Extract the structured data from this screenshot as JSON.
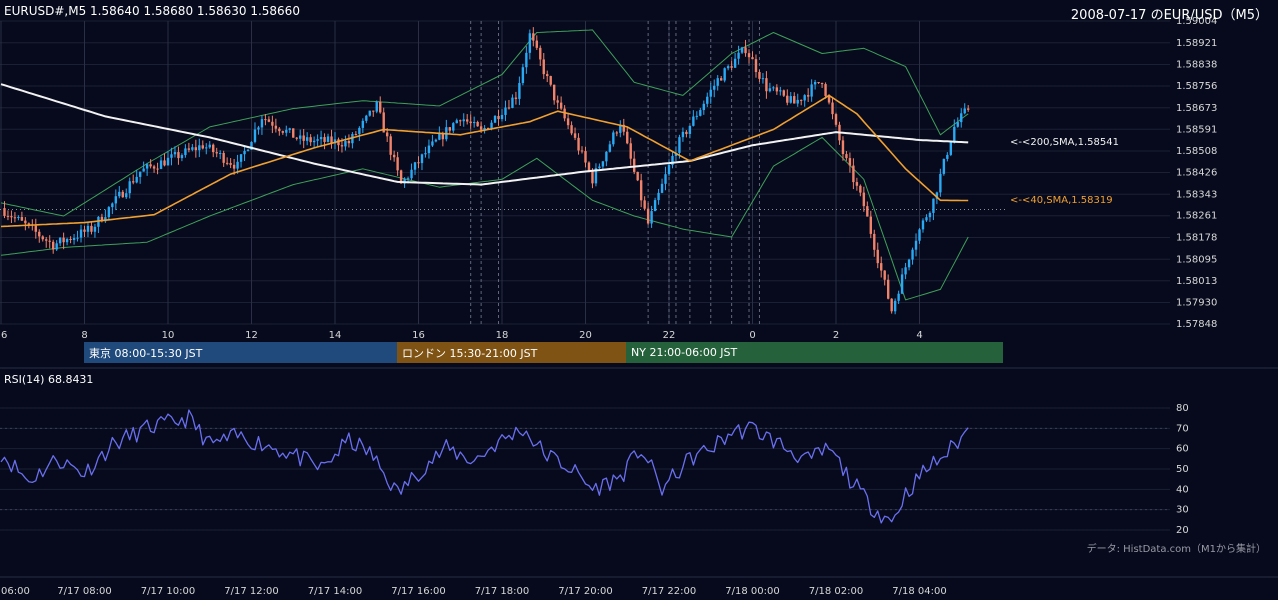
{
  "header": {
    "symbol_info": "EURUSD#,M5 1.58640 1.58680 1.58630 1.58660",
    "title": "2008-07-17 のEUR/USD（M5）"
  },
  "price_panel": {
    "y_ticks": [
      "1.59004",
      "1.58921",
      "1.58838",
      "1.58756",
      "1.58673",
      "1.58591",
      "1.58508",
      "1.58426",
      "1.58343",
      "1.58261",
      "1.58178",
      "1.58095",
      "1.58013",
      "1.57930",
      "1.57848"
    ],
    "x_ticks": [
      "6",
      "8",
      "10",
      "12",
      "14",
      "16",
      "18",
      "20",
      "22",
      "0",
      "2",
      "4"
    ],
    "ma_labels": {
      "sma200": "<-<200,SMA,1.58541",
      "sma40": "<-<40,SMA,1.58319"
    },
    "colors": {
      "background": "#060a1c",
      "candle_up": "#2aa9f5",
      "candle_down": "#f2836b",
      "sma200": "#f2f2f2",
      "sma40": "#f0a030",
      "bollinger": "#3fa05a",
      "reference_line": "#c8c8c8"
    }
  },
  "sessions": [
    {
      "label": "東京 08:00-15:30 JST",
      "color": "#214a7c"
    },
    {
      "label": "ロンドン 15:30-21:00 JST",
      "color": "#7f5314"
    },
    {
      "label": "NY 21:00-06:00 JST",
      "color": "#25613b"
    }
  ],
  "rsi_panel": {
    "title": "RSI(14) 68.8431",
    "y_ticks": [
      "80",
      "70",
      "60",
      "50",
      "40",
      "30",
      "20"
    ],
    "x_ticks": [
      "06:00",
      "7/17 08:00",
      "7/17 10:00",
      "7/17 12:00",
      "7/17 14:00",
      "7/17 16:00",
      "7/17 18:00",
      "7/17 20:00",
      "7/17 22:00",
      "7/18 00:00",
      "7/18 02:00",
      "7/18 04:00"
    ],
    "color": "#6a6ff0"
  },
  "credit": "データ: HistData.com（M1から集計）",
  "chart_data": [
    {
      "type": "candlestick",
      "title": "2008-07-17 のEUR/USD（M5）",
      "ylim": [
        1.57848,
        1.59004
      ],
      "reference_price": 1.58285,
      "anchors": [
        {
          "t": "06:00",
          "price": 1.5829
        },
        {
          "t": "07:15",
          "price": 1.5815
        },
        {
          "t": "08:10",
          "price": 1.5821
        },
        {
          "t": "09:20",
          "price": 1.5843
        },
        {
          "t": "10:50",
          "price": 1.5853
        },
        {
          "t": "11:40",
          "price": 1.5845
        },
        {
          "t": "12:15",
          "price": 1.5864
        },
        {
          "t": "13:10",
          "price": 1.5855
        },
        {
          "t": "14:20",
          "price": 1.5854
        },
        {
          "t": "15:00",
          "price": 1.5868
        },
        {
          "t": "15:35",
          "price": 1.5838
        },
        {
          "t": "16:10",
          "price": 1.585
        },
        {
          "t": "17:00",
          "price": 1.5864
        },
        {
          "t": "17:30",
          "price": 1.5858
        },
        {
          "t": "18:20",
          "price": 1.5872
        },
        {
          "t": "18:40",
          "price": 1.5895
        },
        {
          "t": "19:20",
          "price": 1.5868
        },
        {
          "t": "19:40",
          "price": 1.5858
        },
        {
          "t": "20:10",
          "price": 1.584
        },
        {
          "t": "20:50",
          "price": 1.5862
        },
        {
          "t": "21:30",
          "price": 1.5823
        },
        {
          "t": "22:10",
          "price": 1.5852
        },
        {
          "t": "22:40",
          "price": 1.5865
        },
        {
          "t": "23:10",
          "price": 1.5878
        },
        {
          "t": "23:50",
          "price": 1.589
        },
        {
          "t": "00:20",
          "price": 1.5875
        },
        {
          "t": "01:00",
          "price": 1.5869
        },
        {
          "t": "01:40",
          "price": 1.5878
        },
        {
          "t": "02:10",
          "price": 1.585
        },
        {
          "t": "02:40",
          "price": 1.583
        },
        {
          "t": "03:20",
          "price": 1.579
        },
        {
          "t": "03:50",
          "price": 1.5815
        },
        {
          "t": "04:20",
          "price": 1.5832
        },
        {
          "t": "04:50",
          "price": 1.586
        },
        {
          "t": "05:10",
          "price": 1.5867
        }
      ],
      "sma200": [
        {
          "t": "06:00",
          "price": 1.58763
        },
        {
          "t": "08:30",
          "price": 1.5864
        },
        {
          "t": "11:00",
          "price": 1.5856
        },
        {
          "t": "13:30",
          "price": 1.5846
        },
        {
          "t": "15:30",
          "price": 1.5839
        },
        {
          "t": "17:30",
          "price": 1.5838
        },
        {
          "t": "20:00",
          "price": 1.5843
        },
        {
          "t": "22:30",
          "price": 1.5847
        },
        {
          "t": "00:00",
          "price": 1.5853
        },
        {
          "t": "02:00",
          "price": 1.5858
        },
        {
          "t": "04:00",
          "price": 1.5855
        },
        {
          "t": "05:10",
          "price": 1.58541
        }
      ],
      "sma40": [
        {
          "t": "06:00",
          "price": 1.5822
        },
        {
          "t": "08:00",
          "price": 1.58235
        },
        {
          "t": "09:40",
          "price": 1.58265
        },
        {
          "t": "11:30",
          "price": 1.5842
        },
        {
          "t": "13:30",
          "price": 1.5852
        },
        {
          "t": "15:10",
          "price": 1.5859
        },
        {
          "t": "17:00",
          "price": 1.5857
        },
        {
          "t": "18:40",
          "price": 1.5862
        },
        {
          "t": "19:20",
          "price": 1.5866
        },
        {
          "t": "21:00",
          "price": 1.586
        },
        {
          "t": "22:30",
          "price": 1.5847
        },
        {
          "t": "00:30",
          "price": 1.5859
        },
        {
          "t": "01:50",
          "price": 1.5872
        },
        {
          "t": "02:30",
          "price": 1.5865
        },
        {
          "t": "03:40",
          "price": 1.5844
        },
        {
          "t": "04:30",
          "price": 1.5832
        },
        {
          "t": "05:10",
          "price": 1.58319
        }
      ],
      "bollinger_upper": [
        {
          "t": "06:00",
          "price": 1.5831
        },
        {
          "t": "07:30",
          "price": 1.5826
        },
        {
          "t": "09:30",
          "price": 1.5846
        },
        {
          "t": "11:00",
          "price": 1.586
        },
        {
          "t": "13:00",
          "price": 1.5867
        },
        {
          "t": "14:40",
          "price": 1.587
        },
        {
          "t": "16:30",
          "price": 1.5868
        },
        {
          "t": "18:00",
          "price": 1.588
        },
        {
          "t": "18:50",
          "price": 1.5896
        },
        {
          "t": "20:10",
          "price": 1.5897
        },
        {
          "t": "21:10",
          "price": 1.5877
        },
        {
          "t": "22:20",
          "price": 1.5872
        },
        {
          "t": "23:30",
          "price": 1.5888
        },
        {
          "t": "00:30",
          "price": 1.5896
        },
        {
          "t": "01:40",
          "price": 1.5888
        },
        {
          "t": "02:40",
          "price": 1.589
        },
        {
          "t": "03:40",
          "price": 1.5883
        },
        {
          "t": "04:30",
          "price": 1.5857
        },
        {
          "t": "05:10",
          "price": 1.5865
        }
      ],
      "bollinger_lower": [
        {
          "t": "06:00",
          "price": 1.5811
        },
        {
          "t": "07:30",
          "price": 1.5814
        },
        {
          "t": "09:30",
          "price": 1.5816
        },
        {
          "t": "11:00",
          "price": 1.5826
        },
        {
          "t": "13:00",
          "price": 1.5838
        },
        {
          "t": "14:40",
          "price": 1.5844
        },
        {
          "t": "16:30",
          "price": 1.5837
        },
        {
          "t": "18:00",
          "price": 1.584
        },
        {
          "t": "18:50",
          "price": 1.5848
        },
        {
          "t": "20:10",
          "price": 1.5832
        },
        {
          "t": "21:10",
          "price": 1.5826
        },
        {
          "t": "22:20",
          "price": 1.5821
        },
        {
          "t": "23:30",
          "price": 1.5818
        },
        {
          "t": "00:30",
          "price": 1.5845
        },
        {
          "t": "01:40",
          "price": 1.5856
        },
        {
          "t": "02:40",
          "price": 1.584
        },
        {
          "t": "03:40",
          "price": 1.5794
        },
        {
          "t": "04:30",
          "price": 1.5798
        },
        {
          "t": "05:10",
          "price": 1.5818
        }
      ],
      "session_markers": [
        "17:15",
        "17:30",
        "17:55",
        "21:30",
        "22:00",
        "22:10",
        "22:30",
        "23:00",
        "23:30",
        "23:55",
        "00:10"
      ]
    },
    {
      "type": "line",
      "title": "RSI(14) 68.8431",
      "ylim": [
        20,
        80
      ],
      "anchors": [
        {
          "t": "06:00",
          "rsi": 58
        },
        {
          "t": "06:40",
          "rsi": 44
        },
        {
          "t": "07:20",
          "rsi": 55
        },
        {
          "t": "08:00",
          "rsi": 48
        },
        {
          "t": "08:40",
          "rsi": 62
        },
        {
          "t": "09:30",
          "rsi": 70
        },
        {
          "t": "10:30",
          "rsi": 75
        },
        {
          "t": "11:00",
          "rsi": 62
        },
        {
          "t": "11:40",
          "rsi": 66
        },
        {
          "t": "12:20",
          "rsi": 62
        },
        {
          "t": "13:00",
          "rsi": 57
        },
        {
          "t": "13:40",
          "rsi": 50
        },
        {
          "t": "14:20",
          "rsi": 64
        },
        {
          "t": "14:50",
          "rsi": 58
        },
        {
          "t": "15:30",
          "rsi": 38
        },
        {
          "t": "16:10",
          "rsi": 52
        },
        {
          "t": "16:40",
          "rsi": 60
        },
        {
          "t": "17:20",
          "rsi": 54
        },
        {
          "t": "17:50",
          "rsi": 62
        },
        {
          "t": "18:30",
          "rsi": 70
        },
        {
          "t": "19:00",
          "rsi": 58
        },
        {
          "t": "19:40",
          "rsi": 50
        },
        {
          "t": "20:10",
          "rsi": 40
        },
        {
          "t": "20:50",
          "rsi": 46
        },
        {
          "t": "21:20",
          "rsi": 60
        },
        {
          "t": "21:50",
          "rsi": 40
        },
        {
          "t": "22:30",
          "rsi": 55
        },
        {
          "t": "23:00",
          "rsi": 60
        },
        {
          "t": "23:30",
          "rsi": 68
        },
        {
          "t": "00:00",
          "rsi": 70
        },
        {
          "t": "00:40",
          "rsi": 62
        },
        {
          "t": "01:20",
          "rsi": 54
        },
        {
          "t": "01:50",
          "rsi": 60
        },
        {
          "t": "02:20",
          "rsi": 45
        },
        {
          "t": "02:50",
          "rsi": 32
        },
        {
          "t": "03:20",
          "rsi": 24
        },
        {
          "t": "03:40",
          "rsi": 38
        },
        {
          "t": "04:10",
          "rsi": 50
        },
        {
          "t": "04:40",
          "rsi": 58
        },
        {
          "t": "05:10",
          "rsi": 69
        }
      ]
    }
  ]
}
